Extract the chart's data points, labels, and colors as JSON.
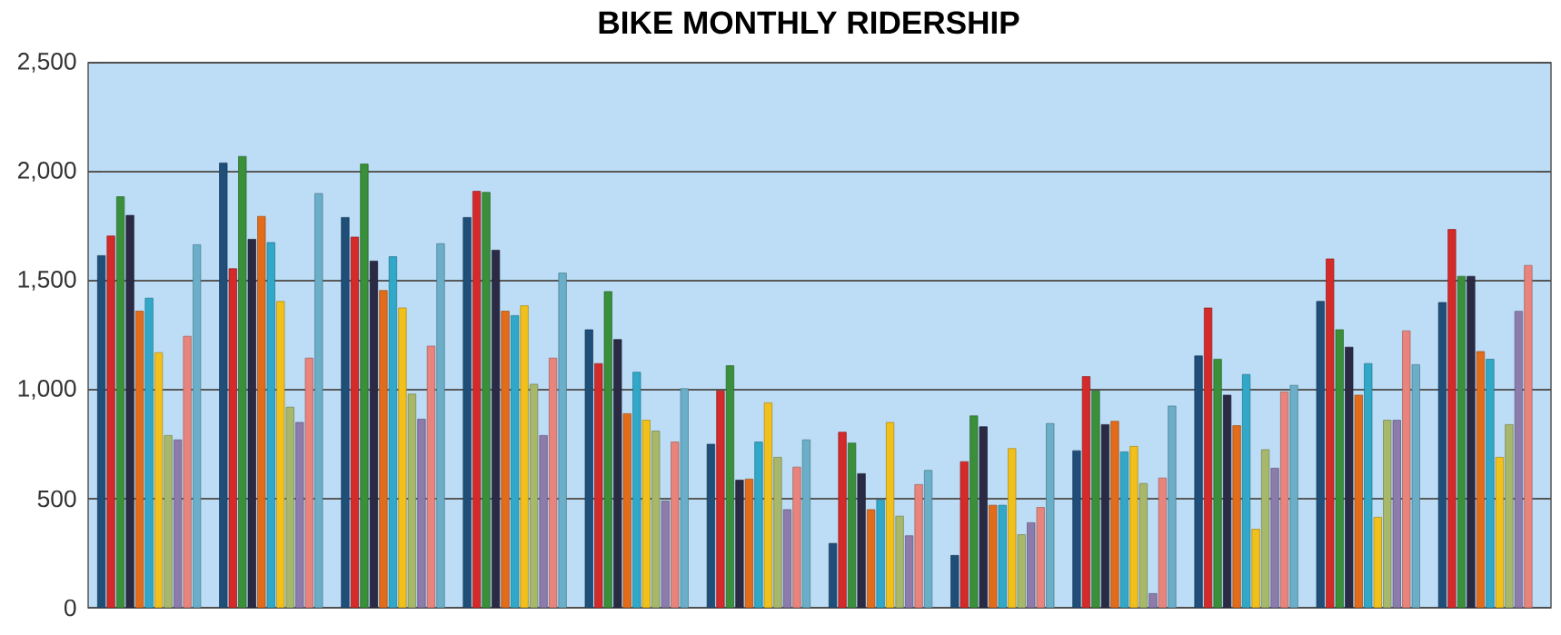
{
  "chart_data": {
    "type": "bar",
    "title": "BIKE MONTHLY RIDERSHIP",
    "categories": [
      null,
      null,
      null,
      null,
      null,
      null,
      null,
      null,
      null,
      null,
      null,
      null
    ],
    "series": [
      {
        "color": "#1f4e79",
        "values": [
          1615,
          2040,
          1790,
          1790,
          1275,
          750,
          295,
          240,
          720,
          1155,
          1405,
          1400
        ]
      },
      {
        "color": "#d42a2a",
        "values": [
          1705,
          1555,
          1700,
          1910,
          1120,
          995,
          805,
          670,
          1060,
          1375,
          1600,
          1735
        ]
      },
      {
        "color": "#3a8f3a",
        "values": [
          1885,
          2070,
          2035,
          1905,
          1450,
          1110,
          755,
          880,
          995,
          1140,
          1275,
          1520
        ]
      },
      {
        "color": "#2b2a45",
        "values": [
          1800,
          1690,
          1590,
          1640,
          1230,
          585,
          615,
          830,
          840,
          975,
          1195,
          1520
        ]
      },
      {
        "color": "#e36c1a",
        "values": [
          1360,
          1795,
          1455,
          1360,
          890,
          590,
          450,
          470,
          855,
          835,
          975,
          1175
        ]
      },
      {
        "color": "#31a8c8",
        "values": [
          1420,
          1675,
          1610,
          1340,
          1080,
          760,
          495,
          470,
          715,
          1070,
          1120,
          1140
        ]
      },
      {
        "color": "#f2c01a",
        "values": [
          1170,
          1405,
          1375,
          1385,
          860,
          940,
          850,
          730,
          740,
          360,
          415,
          690
        ]
      },
      {
        "color": "#a8b86a",
        "values": [
          790,
          920,
          980,
          1025,
          810,
          690,
          420,
          335,
          570,
          725,
          860,
          840
        ]
      },
      {
        "color": "#8c7bab",
        "values": [
          770,
          850,
          865,
          790,
          490,
          450,
          330,
          390,
          65,
          640,
          860,
          1360
        ]
      },
      {
        "color": "#e8847c",
        "values": [
          1245,
          1145,
          1200,
          1145,
          760,
          645,
          565,
          460,
          595,
          990,
          1270,
          1570
        ]
      },
      {
        "color": "#6aaec8",
        "values": [
          1665,
          1900,
          1670,
          1535,
          1005,
          770,
          630,
          845,
          925,
          1020,
          1115,
          null
        ]
      }
    ],
    "ylim": [
      0,
      2500
    ],
    "yticks": [
      0,
      500,
      {
        "value": 1000,
        "label": "1,000"
      },
      {
        "value": 1500,
        "label": "1,500"
      },
      {
        "value": 2000,
        "label": "2,000"
      },
      {
        "value": 2500,
        "label": "2,500"
      }
    ],
    "grid": "y",
    "tick_labels": "y"
  }
}
